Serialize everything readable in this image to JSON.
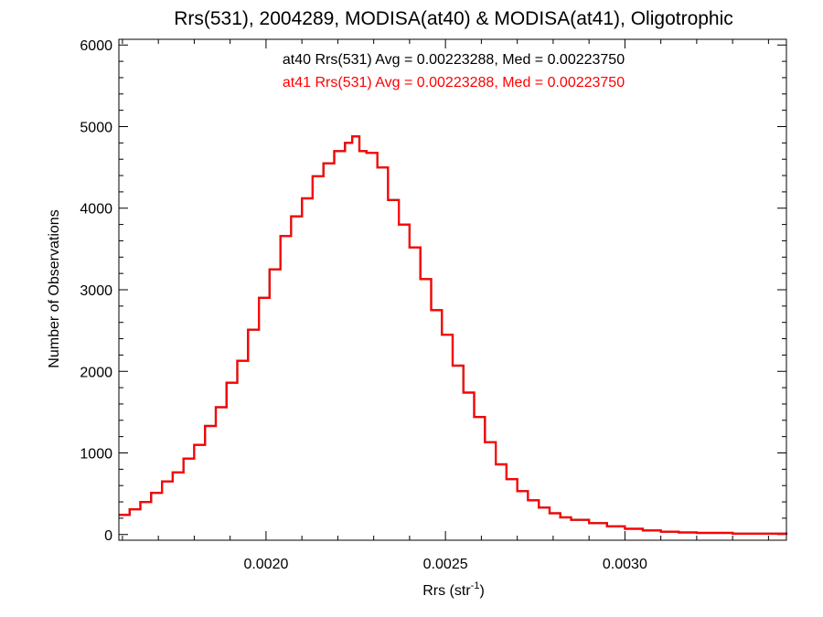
{
  "chart_data": {
    "type": "histogram",
    "title": "Rrs(531), 2004289, MODISA(at40) & MODISA(at41), Oligotrophic",
    "xlabel_main": "Rrs (str",
    "xlabel_sup": "-1",
    "xlabel_tail": ")",
    "ylabel": "Number of Observations",
    "xlim": [
      0.00159,
      0.00345
    ],
    "ylim": [
      -70,
      6070
    ],
    "x_ticks": [
      {
        "value": 0.002,
        "label": "0.0020"
      },
      {
        "value": 0.0025,
        "label": "0.0025"
      },
      {
        "value": 0.003,
        "label": "0.0030"
      }
    ],
    "x_minor_step": 0.0001,
    "y_ticks": [
      {
        "value": 0,
        "label": "0"
      },
      {
        "value": 1000,
        "label": "1000"
      },
      {
        "value": 2000,
        "label": "2000"
      },
      {
        "value": 3000,
        "label": "3000"
      },
      {
        "value": 4000,
        "label": "4000"
      },
      {
        "value": 5000,
        "label": "5000"
      },
      {
        "value": 6000,
        "label": "6000"
      }
    ],
    "y_minor_step": 200,
    "annotations": [
      {
        "text": "at40 Rrs(531) Avg = 0.00223288, Med = 0.00223750",
        "color": "#000000"
      },
      {
        "text": "at41 Rrs(531) Avg = 0.00223288, Med = 0.00223750",
        "color": "#ff0000"
      }
    ],
    "series": [
      {
        "name": "at40",
        "color": "#000000",
        "x": [
          0.00159,
          0.00162,
          0.00165,
          0.00168,
          0.00171,
          0.00174,
          0.00177,
          0.0018,
          0.00183,
          0.00186,
          0.00189,
          0.00192,
          0.00195,
          0.00198,
          0.00201,
          0.00204,
          0.00207,
          0.0021,
          0.00213,
          0.00216,
          0.00219,
          0.00222,
          0.00224,
          0.00226,
          0.00228,
          0.00231,
          0.00234,
          0.00237,
          0.0024,
          0.00243,
          0.00246,
          0.00249,
          0.00252,
          0.00255,
          0.00258,
          0.00261,
          0.00264,
          0.00267,
          0.0027,
          0.00273,
          0.00276,
          0.00279,
          0.00282,
          0.00285,
          0.0029,
          0.00295,
          0.003,
          0.00305,
          0.0031,
          0.00315,
          0.0032,
          0.0033,
          0.00345
        ],
        "y": [
          240,
          310,
          400,
          510,
          650,
          760,
          930,
          1100,
          1330,
          1560,
          1860,
          2130,
          2510,
          2900,
          3250,
          3660,
          3900,
          4120,
          4390,
          4550,
          4700,
          4800,
          4880,
          4700,
          4680,
          4500,
          4100,
          3800,
          3520,
          3130,
          2750,
          2450,
          2070,
          1740,
          1440,
          1130,
          860,
          680,
          530,
          420,
          330,
          260,
          210,
          180,
          140,
          100,
          70,
          50,
          35,
          25,
          20,
          10,
          0
        ]
      },
      {
        "name": "at41",
        "color": "#ff0000",
        "x": [
          0.00159,
          0.00162,
          0.00165,
          0.00168,
          0.00171,
          0.00174,
          0.00177,
          0.0018,
          0.00183,
          0.00186,
          0.00189,
          0.00192,
          0.00195,
          0.00198,
          0.00201,
          0.00204,
          0.00207,
          0.0021,
          0.00213,
          0.00216,
          0.00219,
          0.00222,
          0.00224,
          0.00226,
          0.00228,
          0.00231,
          0.00234,
          0.00237,
          0.0024,
          0.00243,
          0.00246,
          0.00249,
          0.00252,
          0.00255,
          0.00258,
          0.00261,
          0.00264,
          0.00267,
          0.0027,
          0.00273,
          0.00276,
          0.00279,
          0.00282,
          0.00285,
          0.0029,
          0.00295,
          0.003,
          0.00305,
          0.0031,
          0.00315,
          0.0032,
          0.0033,
          0.00345
        ],
        "y": [
          240,
          310,
          400,
          510,
          650,
          760,
          930,
          1100,
          1330,
          1560,
          1860,
          2130,
          2510,
          2900,
          3250,
          3660,
          3900,
          4120,
          4390,
          4550,
          4700,
          4800,
          4880,
          4700,
          4680,
          4500,
          4100,
          3800,
          3520,
          3130,
          2750,
          2450,
          2070,
          1740,
          1440,
          1130,
          860,
          680,
          530,
          420,
          330,
          260,
          210,
          180,
          140,
          100,
          70,
          50,
          35,
          25,
          20,
          10,
          0
        ]
      }
    ],
    "grid": false,
    "legend": "none"
  }
}
